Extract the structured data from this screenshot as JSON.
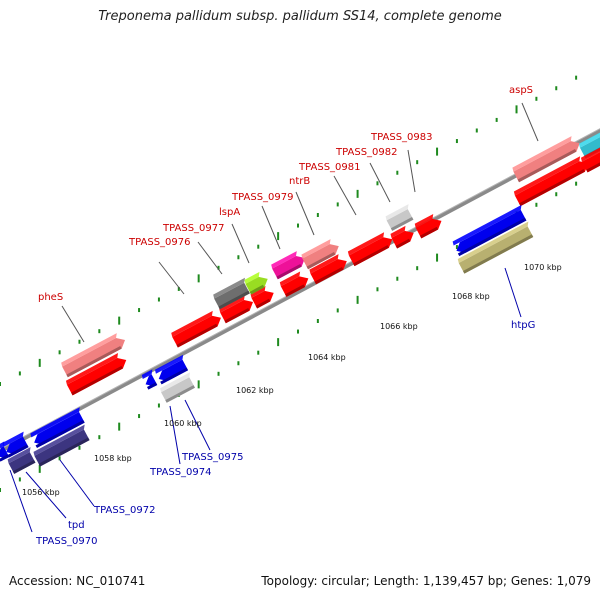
{
  "title": "Treponema pallidum subsp. pallidum SS14, complete genome",
  "footer": {
    "accession": "Accession: NC_010741",
    "summary": "Topology: circular; Length: 1,139,457 bp; Genes: 1,079"
  },
  "colors": {
    "backbone": "#8a8a8a",
    "tick": "#1e8a1e",
    "forward_label": "#cc0000",
    "reverse_label": "#0000aa",
    "red": "#ff0000",
    "pink": "#f08080",
    "grey": "#c8c8c8",
    "dark_grey": "#6e6e6e",
    "lime": "#99dd22",
    "magenta": "#ee1199",
    "cyan": "#33bbcc",
    "blue": "#0000ee",
    "navy": "#3c3580",
    "olive": "#b8b070"
  },
  "kbp_labels": [
    "1056 kbp",
    "1058 kbp",
    "1060 kbp",
    "1062 kbp",
    "1064 kbp",
    "1066 kbp",
    "1068 kbp",
    "1070 kbp"
  ],
  "forward_labels": [
    "pheS",
    "TPASS_0976",
    "TPASS_0977",
    "lspA",
    "TPASS_0979",
    "ntrB",
    "TPASS_0981",
    "TPASS_0982",
    "TPASS_0983",
    "aspS"
  ],
  "reverse_labels": [
    "TPASS_0970",
    "tpd",
    "TPASS_0972",
    "TPASS_0974",
    "TPASS_0975",
    "htpG"
  ]
}
